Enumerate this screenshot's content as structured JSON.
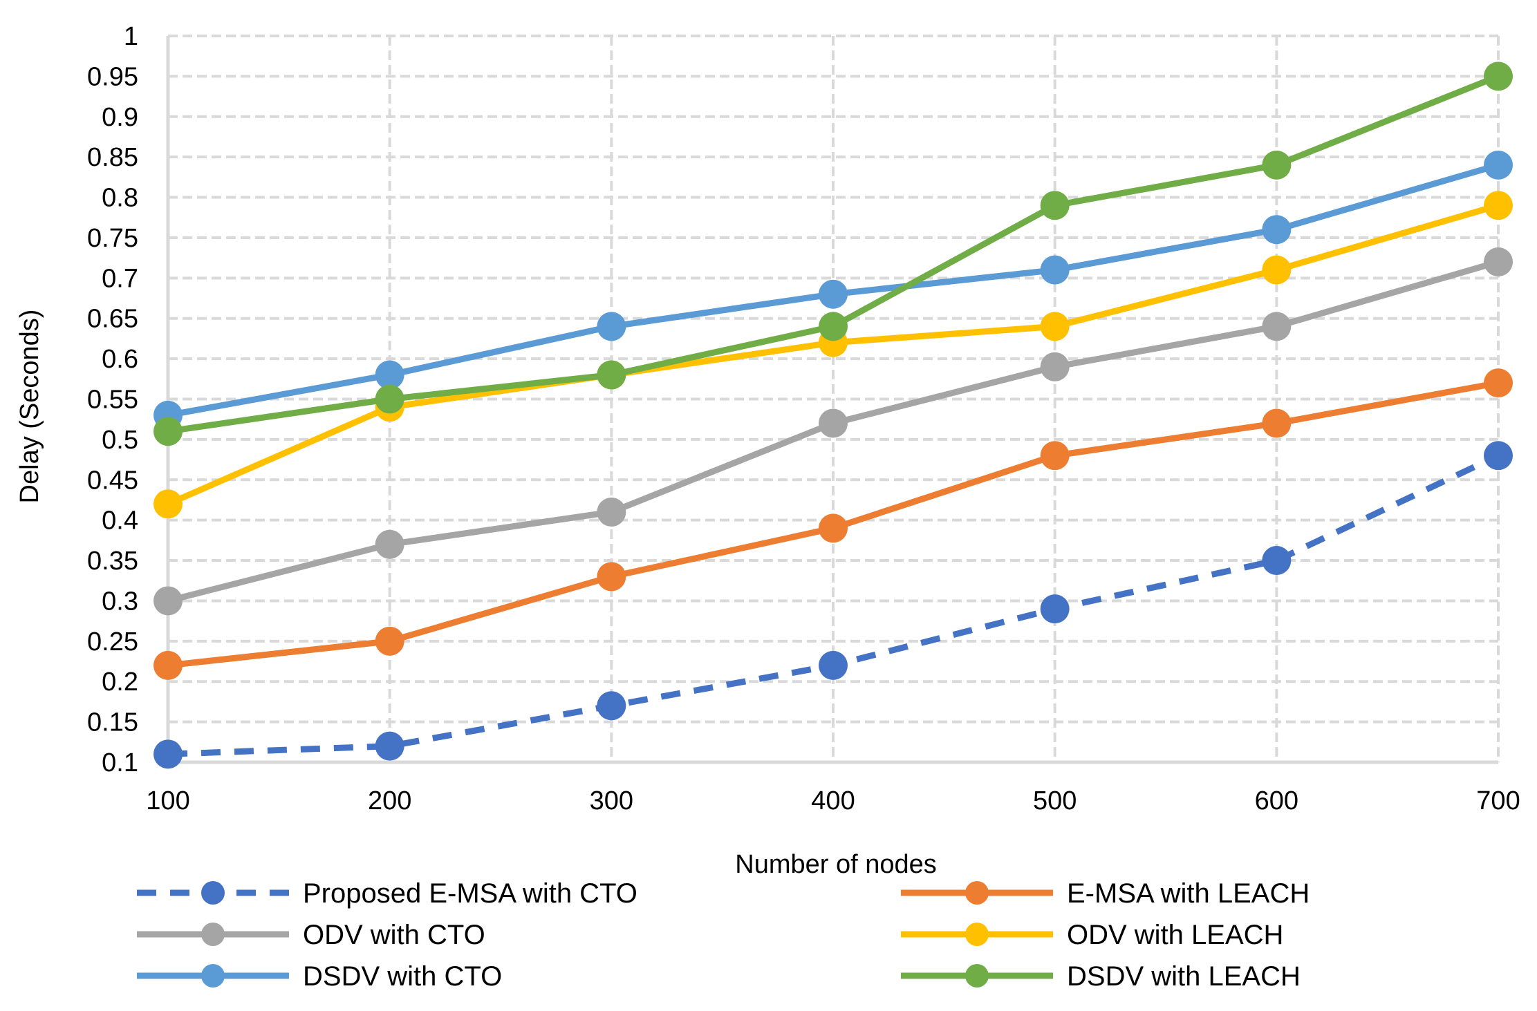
{
  "chart_data": {
    "type": "line",
    "title": "",
    "xlabel": "Number of nodes",
    "ylabel": "Delay (Seconds)",
    "categories": [
      "100",
      "200",
      "300",
      "400",
      "500",
      "600",
      "700"
    ],
    "x": [
      100,
      200,
      300,
      400,
      500,
      600,
      700
    ],
    "xlim": [
      100,
      700
    ],
    "ylim": [
      0.1,
      1
    ],
    "yticks": [
      "0.1",
      "0.15",
      "0.2",
      "0.25",
      "0.3",
      "0.35",
      "0.4",
      "0.45",
      "0.5",
      "0.55",
      "0.6",
      "0.65",
      "0.7",
      "0.75",
      "0.8",
      "0.85",
      "0.9",
      "0.95",
      "1"
    ],
    "ytick_values": [
      0.1,
      0.15,
      0.2,
      0.25,
      0.3,
      0.35,
      0.4,
      0.45,
      0.5,
      0.55,
      0.6,
      0.65,
      0.7,
      0.75,
      0.8,
      0.85,
      0.9,
      0.95,
      1.0
    ],
    "grid": true,
    "legend_position": "bottom",
    "series": [
      {
        "key": "e-msa-cto",
        "name": "Proposed E-MSA with CTO",
        "color": "#4472C4",
        "dashed": true,
        "values": [
          0.11,
          0.12,
          0.17,
          0.22,
          0.29,
          0.35,
          0.48
        ]
      },
      {
        "key": "e-msa-leach",
        "name": "E-MSA with LEACH",
        "color": "#ED7D31",
        "dashed": false,
        "values": [
          0.22,
          0.25,
          0.33,
          0.39,
          0.48,
          0.52,
          0.57
        ]
      },
      {
        "key": "odv-cto",
        "name": "ODV with CTO",
        "color": "#A5A5A5",
        "dashed": false,
        "values": [
          0.3,
          0.37,
          0.41,
          0.52,
          0.59,
          0.64,
          0.72
        ]
      },
      {
        "key": "odv-leach",
        "name": "ODV with LEACH",
        "color": "#FFC000",
        "dashed": false,
        "values": [
          0.42,
          0.54,
          0.58,
          0.62,
          0.64,
          0.71,
          0.79
        ]
      },
      {
        "key": "dsdv-cto",
        "name": "DSDV with CTO",
        "color": "#5B9BD5",
        "dashed": false,
        "values": [
          0.53,
          0.58,
          0.64,
          0.68,
          0.71,
          0.76,
          0.84
        ]
      },
      {
        "key": "dsdv-leach",
        "name": "DSDV with LEACH",
        "color": "#70AD47",
        "dashed": false,
        "values": [
          0.51,
          0.55,
          0.58,
          0.64,
          0.79,
          0.84,
          0.95
        ]
      }
    ],
    "draw_order": [
      "dsdv-cto",
      "odv-cto",
      "odv-leach",
      "dsdv-leach",
      "e-msa-leach",
      "e-msa-cto"
    ],
    "legend_order": [
      "e-msa-cto",
      "e-msa-leach",
      "odv-cto",
      "odv-leach",
      "dsdv-cto",
      "dsdv-leach"
    ]
  }
}
